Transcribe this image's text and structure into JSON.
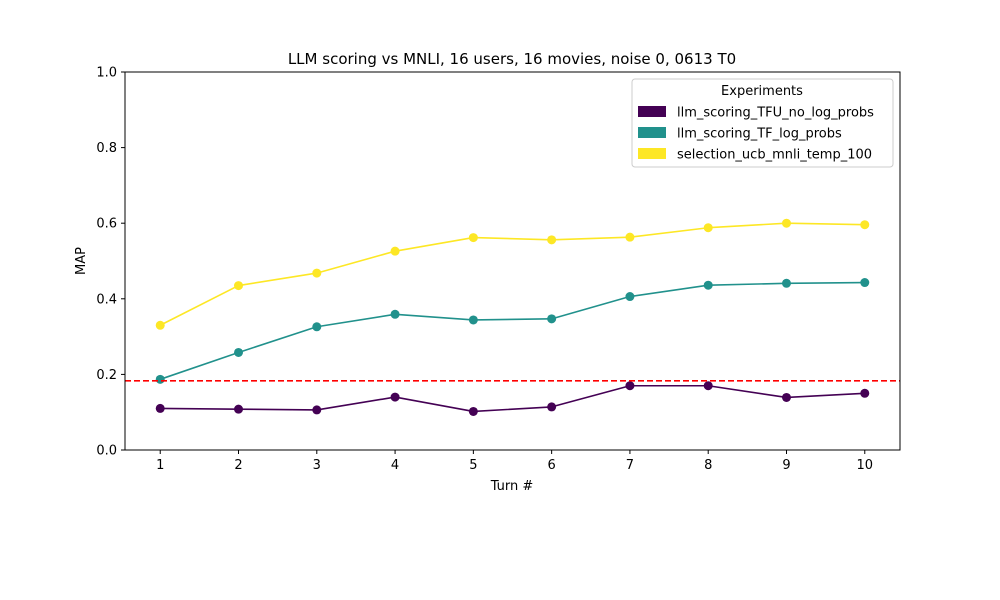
{
  "chart_data": {
    "type": "line",
    "title": "LLM scoring vs MNLI, 16 users, 16 movies, noise 0, 0613 T0",
    "xlabel": "Turn #",
    "ylabel": "MAP",
    "x": [
      1,
      2,
      3,
      4,
      5,
      6,
      7,
      8,
      9,
      10
    ],
    "xticks": [
      "1",
      "2",
      "3",
      "4",
      "5",
      "6",
      "7",
      "8",
      "9",
      "10"
    ],
    "yticks": [
      "0.0",
      "0.2",
      "0.4",
      "0.6",
      "0.8",
      "1.0"
    ],
    "xlim": [
      0.55,
      10.45
    ],
    "ylim": [
      0,
      1
    ],
    "grid": false,
    "legend": {
      "title": "Experiments",
      "placement": "top-right"
    },
    "series": [
      {
        "name": "llm_scoring_TFU_no_log_probs",
        "color": "#440154",
        "values": [
          0.11,
          0.108,
          0.106,
          0.14,
          0.102,
          0.114,
          0.17,
          0.17,
          0.139,
          0.15
        ]
      },
      {
        "name": "llm_scoring_TF_log_probs",
        "color": "#21918c",
        "values": [
          0.187,
          0.258,
          0.326,
          0.359,
          0.344,
          0.347,
          0.406,
          0.436,
          0.441,
          0.443
        ]
      },
      {
        "name": "selection_ucb_mnli_temp_100",
        "color": "#fde725",
        "values": [
          0.33,
          0.435,
          0.468,
          0.526,
          0.562,
          0.556,
          0.563,
          0.588,
          0.6,
          0.596
        ]
      }
    ],
    "reference_line": {
      "y": 0.183,
      "color": "#ff0000",
      "style": "dashed"
    }
  }
}
